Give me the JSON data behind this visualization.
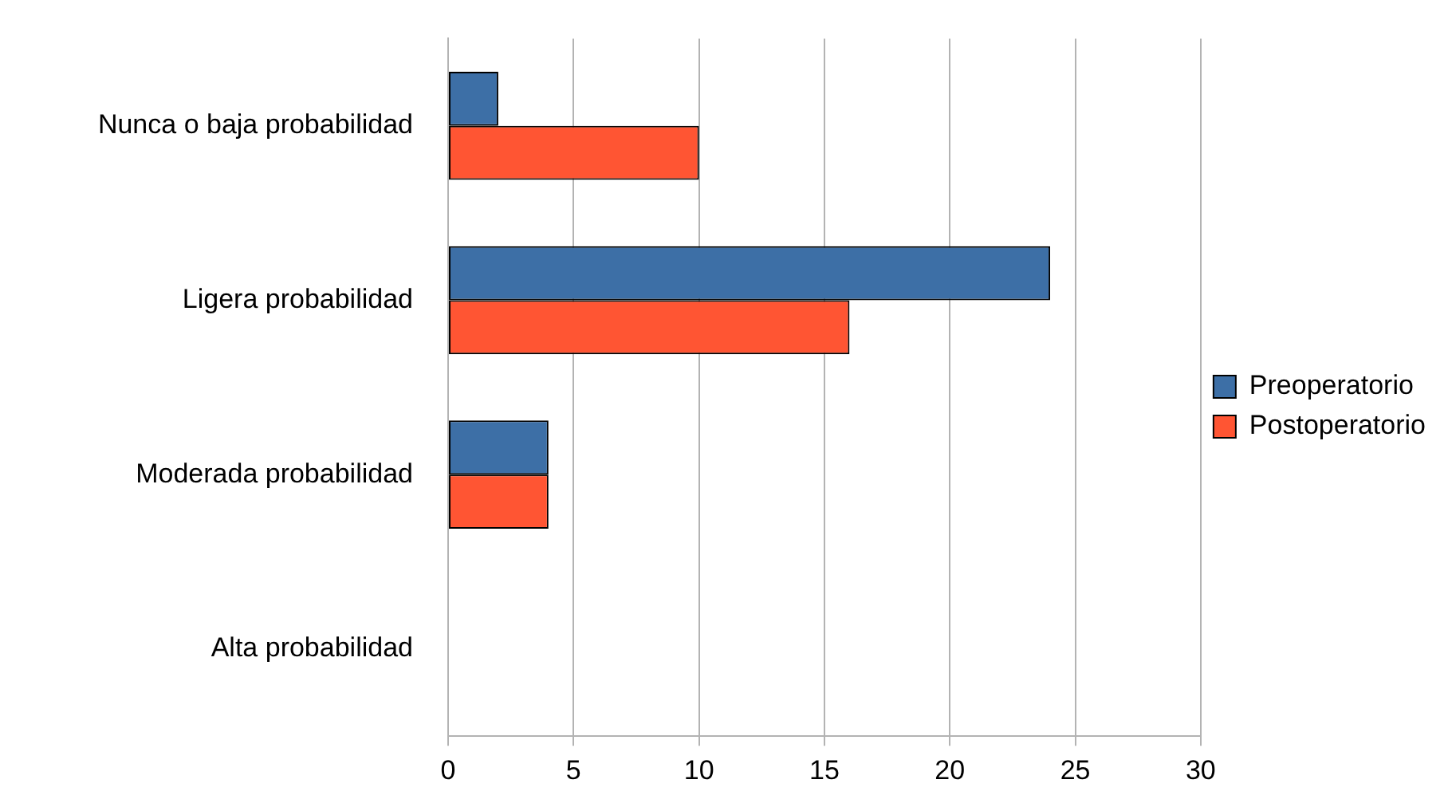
{
  "chart_data": {
    "type": "bar",
    "orientation": "horizontal",
    "categories": [
      "Nunca o baja probabilidad",
      "Ligera probabilidad",
      "Moderada probabilidad",
      "Alta probabilidad"
    ],
    "series": [
      {
        "name": "Preoperatorio",
        "color": "#3d6fa6",
        "values": [
          2,
          24,
          4,
          0
        ]
      },
      {
        "name": "Postoperatorio",
        "color": "#ff5533",
        "values": [
          10,
          16,
          4,
          0
        ]
      }
    ],
    "xlim": [
      0,
      30
    ],
    "xticks": [
      0,
      5,
      10,
      15,
      20,
      25,
      30
    ],
    "grid": "x",
    "legend": "right"
  }
}
